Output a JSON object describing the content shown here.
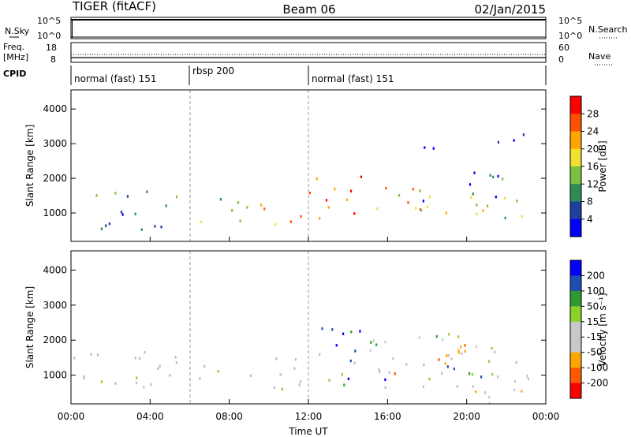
{
  "header": {
    "station": "TIGER (fitACF)",
    "beam": "Beam 06",
    "date": "02/Jan/2015"
  },
  "top_strip": {
    "left_label": "N.Sky",
    "right_label": "N.Search",
    "left_ticks": [
      "10^5",
      "10^0"
    ],
    "right_ticks": [
      "10^5",
      "10^0"
    ]
  },
  "freq_strip": {
    "left_label_1": "Freq.",
    "left_label_2": "[MHz]",
    "right_label": "Nave",
    "left_ticks": [
      "18",
      "8"
    ],
    "right_ticks": [
      "60",
      "0"
    ]
  },
  "cpid": {
    "label": "CPID",
    "segments": [
      {
        "label": "normal (fast) 151",
        "start_hour": 0,
        "end_hour": 6
      },
      {
        "label": "rbsp 200",
        "start_hour": 6,
        "end_hour": 12
      },
      {
        "label": "normal (fast) 151",
        "start_hour": 12,
        "end_hour": 24
      }
    ]
  },
  "colors": {
    "power_scale": [
      "#0000ff",
      "#1e3fa0",
      "#2e8b57",
      "#7ac142",
      "#f0e030",
      "#ffa500",
      "#ff5000",
      "#ff0000"
    ],
    "velocity_scale": [
      "#ff0000",
      "#ff5a00",
      "#ffa500",
      "#c8c8c8",
      "#c8c8c8",
      "#8ad12a",
      "#2e9a2e",
      "#1e4fb0",
      "#0000ff"
    ],
    "ground_scatter": "#bdbdbd"
  },
  "chart_data": [
    {
      "type": "heatmap",
      "name_key": "power",
      "ylabel": "Slant Range [km]",
      "ylim": [
        180,
        4550
      ],
      "xlim_hours": [
        0,
        24
      ],
      "yticks": [
        "1000",
        "2000",
        "3000",
        "4000"
      ],
      "colorbar": {
        "label": "Power [dB]",
        "ticks": [
          "4",
          "8",
          "12",
          "16",
          "20",
          "24",
          "28"
        ],
        "range": [
          0,
          30
        ]
      },
      "bands": [
        {
          "t0": 0,
          "t1": 6,
          "r_lo": 1150,
          "r_hi": 1650,
          "level": 0.25
        },
        {
          "t0": 0,
          "t1": 6,
          "r_lo": 500,
          "r_hi": 1100,
          "level": 0.2
        },
        {
          "t0": 6,
          "t1": 9,
          "r_lo": 1100,
          "r_hi": 1600,
          "level": 0.45
        },
        {
          "t0": 6.5,
          "t1": 9,
          "r_lo": 400,
          "r_hi": 1000,
          "level": 0.55
        },
        {
          "t0": 9,
          "t1": 12,
          "r_lo": 700,
          "r_hi": 1700,
          "level": 0.7
        },
        {
          "t0": 12,
          "t1": 16,
          "r_lo": 700,
          "r_hi": 2200,
          "level": 0.85
        },
        {
          "t0": 16,
          "t1": 20,
          "r_lo": 700,
          "r_hi": 1800,
          "level": 0.6
        },
        {
          "t0": 17,
          "t1": 22,
          "r_lo": 1300,
          "r_hi": 2300,
          "level": 0.15
        },
        {
          "t0": 20,
          "t1": 24,
          "r_lo": 300,
          "r_hi": 1500,
          "level": 0.5
        },
        {
          "t0": 16,
          "t1": 23,
          "r_lo": 2900,
          "r_hi": 3400,
          "level": 0.05
        }
      ]
    },
    {
      "type": "heatmap",
      "name_key": "velocity",
      "ylabel": "Slant Range [km]",
      "ylim": [
        180,
        4550
      ],
      "xlim_hours": [
        0,
        24
      ],
      "xlabel": "Time UT",
      "yticks": [
        "1000",
        "2000",
        "3000",
        "4000"
      ],
      "xticks": [
        "00:00",
        "04:00",
        "08:00",
        "12:00",
        "16:00",
        "20:00",
        "00:00"
      ],
      "colorbar": {
        "label": "Velocity [m s⁻¹]",
        "ticks": [
          "200",
          "100",
          "50",
          "15",
          "-15",
          "-50",
          "-100",
          "-200"
        ],
        "range": [
          -250,
          250
        ]
      },
      "bands": [
        {
          "t0": 0,
          "t1": 24,
          "r_lo": 600,
          "r_hi": 1700,
          "vel": 0,
          "ground": true
        },
        {
          "t0": 12,
          "t1": 16,
          "r_lo": 700,
          "r_hi": 2400,
          "vel": 200
        },
        {
          "t0": 12.5,
          "t1": 14,
          "r_lo": 700,
          "r_hi": 1200,
          "vel": 60
        },
        {
          "t0": 16,
          "t1": 20,
          "r_lo": 1000,
          "r_hi": 2000,
          "vel": -160
        },
        {
          "t0": 19,
          "t1": 21,
          "r_lo": 900,
          "r_hi": 1700,
          "vel": 180
        },
        {
          "t0": 20,
          "t1": 24,
          "r_lo": 200,
          "r_hi": 900,
          "vel": -60
        },
        {
          "t0": 15,
          "t1": 23,
          "r_lo": 1700,
          "r_hi": 2300,
          "vel": 60
        }
      ]
    }
  ]
}
